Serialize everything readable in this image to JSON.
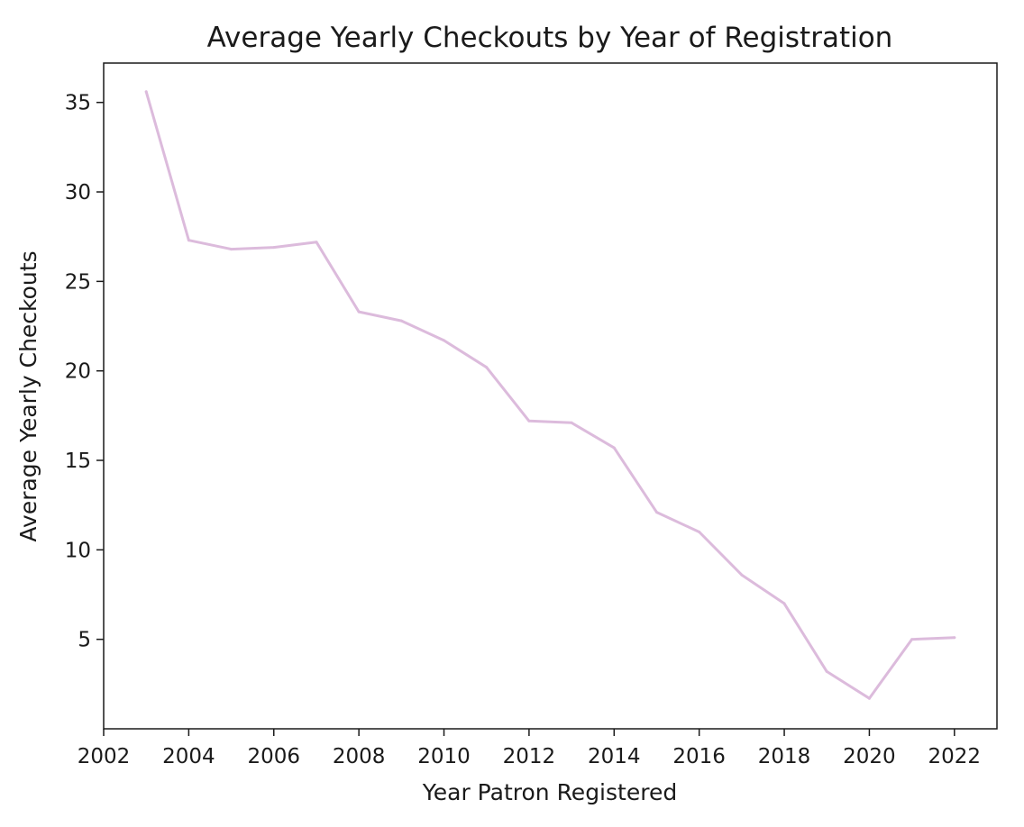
{
  "chart_data": {
    "type": "line",
    "title": "Average Yearly Checkouts by Year of Registration",
    "xlabel": "Year Patron Registered",
    "ylabel": "Average Yearly Checkouts",
    "xlim": [
      2002,
      2023
    ],
    "ylim": [
      0,
      37.2
    ],
    "x_ticks": [
      2002,
      2004,
      2006,
      2008,
      2010,
      2012,
      2014,
      2016,
      2018,
      2020,
      2022
    ],
    "y_ticks": [
      5,
      10,
      15,
      20,
      25,
      30,
      35
    ],
    "grid": false,
    "line_color": "#dcbbdc",
    "series": [
      {
        "x": [
          2003,
          2004,
          2005,
          2006,
          2007,
          2008,
          2009,
          2010,
          2011,
          2012,
          2013,
          2014,
          2015,
          2016,
          2017,
          2018,
          2019,
          2020,
          2021,
          2022
        ],
        "values": [
          35.6,
          27.3,
          26.8,
          26.9,
          27.2,
          23.3,
          22.8,
          21.7,
          20.2,
          17.2,
          17.1,
          15.7,
          12.1,
          11.0,
          8.6,
          7.0,
          3.2,
          1.7,
          5.0,
          5.1
        ]
      }
    ]
  }
}
